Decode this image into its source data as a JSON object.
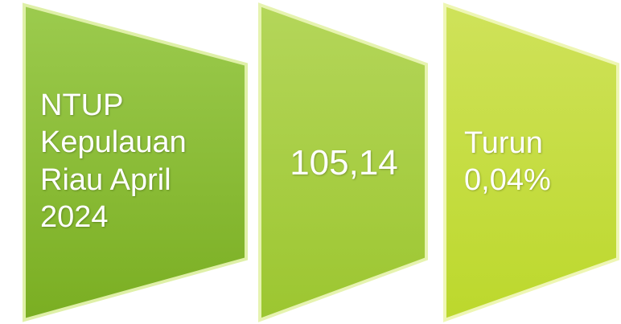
{
  "panels": [
    {
      "text": "NTUP Kepulauan Riau April 2024"
    },
    {
      "text": "105,14"
    },
    {
      "text": "Turun 0,04%"
    }
  ]
}
